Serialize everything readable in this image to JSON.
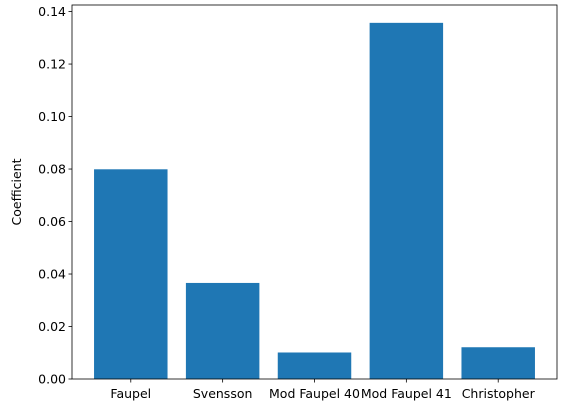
{
  "chart_data": {
    "type": "bar",
    "categories": [
      "Faupel",
      "Svensson",
      "Mod Faupel 40",
      "Mod Faupel 41",
      "Christopher"
    ],
    "values": [
      0.0799,
      0.0366,
      0.0101,
      0.1357,
      0.0121
    ],
    "title": "",
    "xlabel": "",
    "ylabel": "Coefficient",
    "ylim": [
      0,
      0.1425
    ],
    "yticks": [
      0.0,
      0.02,
      0.04,
      0.06,
      0.08,
      0.1,
      0.12,
      0.14
    ],
    "ytick_labels": [
      "0.00",
      "0.02",
      "0.04",
      "0.06",
      "0.08",
      "0.10",
      "0.12",
      "0.14"
    ],
    "grid": false,
    "bar_color": "#1f77b4"
  }
}
